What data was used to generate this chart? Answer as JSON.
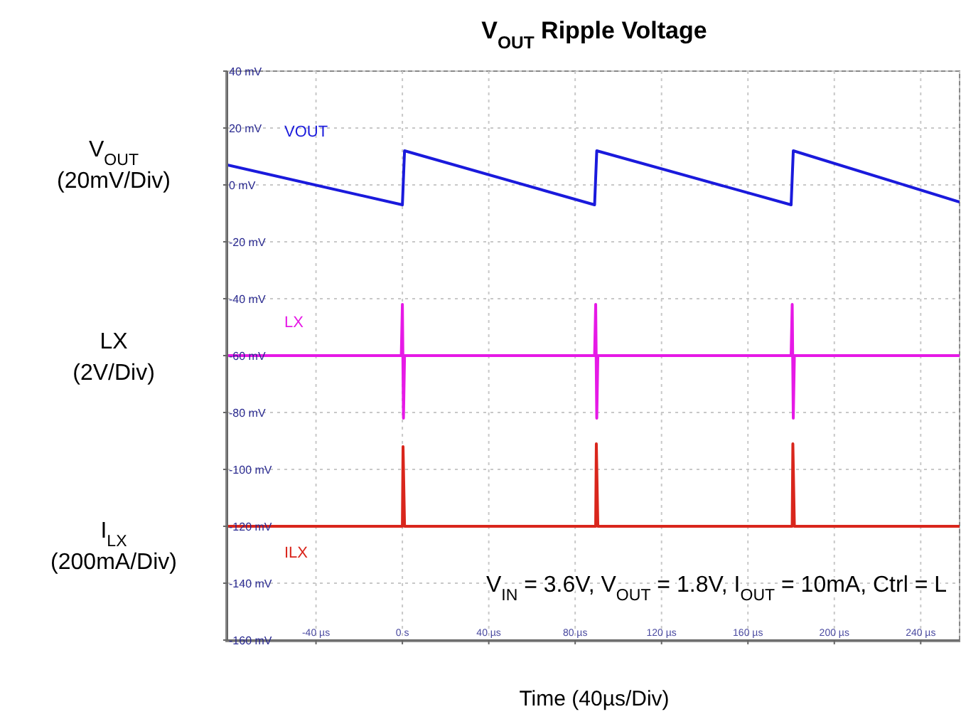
{
  "chart_data": {
    "type": "line",
    "title": "V$_{OUT}$ Ripple Voltage",
    "xlabel": "Time (40µs/Div)",
    "annotations": [
      "V$_{OUT}$\n(20mV/Div)",
      "LX\n(2V/Div)",
      "I$_{LX}$\n(200mA/Div)",
      "V$_{IN}$ = 3.6V, V$_{OUT}$ = 1.8V, I$_{OUT}$ = 10mA, Ctrl = L"
    ],
    "series": [
      {
        "name": "VOUT",
        "color": "#1a1adc",
        "x": [
          -81,
          0,
          1,
          89,
          90,
          180,
          181,
          258
        ],
        "values": [
          7,
          -7,
          12,
          -7,
          12,
          -7,
          12,
          -6
        ]
      },
      {
        "name": "LX",
        "color": "#e619e6",
        "x": [
          -81,
          -0.5,
          0,
          0.5,
          1,
          89,
          89.5,
          90,
          90.5,
          180,
          180.5,
          181,
          181.5,
          258
        ],
        "values": [
          -60,
          -60,
          -42,
          -82,
          -60,
          -60,
          -42,
          -82,
          -60,
          -60,
          -42,
          -82,
          -60,
          -60
        ]
      },
      {
        "name": "ILX",
        "color": "#d9261c",
        "x": [
          -81,
          0,
          0.3,
          1,
          89.5,
          89.8,
          90.5,
          180.5,
          180.8,
          181.5,
          258
        ],
        "values": [
          -120,
          -120,
          -92,
          -120,
          -120,
          -91,
          -120,
          -120,
          -91,
          -120,
          -120
        ]
      }
    ],
    "xlim": [
      -81,
      258
    ],
    "xticks": [
      {
        "value": -40,
        "label": "-40 µs"
      },
      {
        "value": 0,
        "label": "0 s"
      },
      {
        "value": 40,
        "label": "40 µs"
      },
      {
        "value": 80,
        "label": "80 µs"
      },
      {
        "value": 120,
        "label": "120 µs"
      },
      {
        "value": 160,
        "label": "160 µs"
      },
      {
        "value": 200,
        "label": "200 µs"
      },
      {
        "value": 240,
        "label": "240 µs"
      }
    ],
    "ylim": [
      -160,
      40
    ],
    "yticks": [
      {
        "value": -160,
        "label": "-160 mV"
      },
      {
        "value": -140,
        "label": "-140 mV"
      },
      {
        "value": -120,
        "label": "-120 mV"
      },
      {
        "value": -100,
        "label": "-100 mV"
      },
      {
        "value": -80,
        "label": "-80 mV"
      },
      {
        "value": -60,
        "label": "-60 mV"
      },
      {
        "value": -40,
        "label": "-40 mV"
      },
      {
        "value": -20,
        "label": "-20 mV"
      },
      {
        "value": 0,
        "label": "0 mV"
      },
      {
        "value": 20,
        "label": "20 mV"
      },
      {
        "value": 40,
        "label": "40 mV"
      }
    ],
    "grid": true,
    "legend": false,
    "marker": "none",
    "line_style": "solid"
  }
}
